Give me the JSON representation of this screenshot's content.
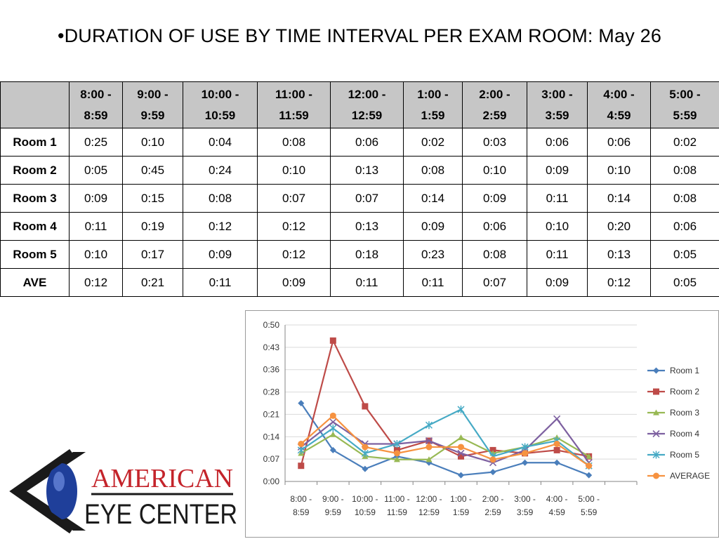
{
  "slide": {
    "title": "•DURATION OF USE BY TIME INTERVAL PER EXAM ROOM: May 26"
  },
  "table": {
    "columns": [
      "8:00 - 8:59",
      "9:00 - 9:59",
      "10:00 - 10:59",
      "11:00 - 11:59",
      "12:00 - 12:59",
      "1:00 - 1:59",
      "2:00 - 2:59",
      "3:00 - 3:59",
      "4:00 - 4:59",
      "5:00 - 5:59"
    ],
    "rows": [
      {
        "label": "Room 1",
        "cells": [
          "0:25",
          "0:10",
          "0:04",
          "0:08",
          "0:06",
          "0:02",
          "0:03",
          "0:06",
          "0:06",
          "0:02"
        ]
      },
      {
        "label": "Room 2",
        "cells": [
          "0:05",
          "0:45",
          "0:24",
          "0:10",
          "0:13",
          "0:08",
          "0:10",
          "0:09",
          "0:10",
          "0:08"
        ]
      },
      {
        "label": "Room 3",
        "cells": [
          "0:09",
          "0:15",
          "0:08",
          "0:07",
          "0:07",
          "0:14",
          "0:09",
          "0:11",
          "0:14",
          "0:08"
        ]
      },
      {
        "label": "Room 4",
        "cells": [
          "0:11",
          "0:19",
          "0:12",
          "0:12",
          "0:13",
          "0:09",
          "0:06",
          "0:10",
          "0:20",
          "0:06"
        ]
      },
      {
        "label": "Room 5",
        "cells": [
          "0:10",
          "0:17",
          "0:09",
          "0:12",
          "0:18",
          "0:23",
          "0:08",
          "0:11",
          "0:13",
          "0:05"
        ]
      },
      {
        "label": "AVE",
        "cells": [
          "0:12",
          "0:21",
          "0:11",
          "0:09",
          "0:11",
          "0:11",
          "0:07",
          "0:09",
          "0:12",
          "0:05"
        ]
      }
    ]
  },
  "chart_data": {
    "type": "line",
    "categories": [
      [
        "8:00 -",
        "8:59"
      ],
      [
        "9:00 -",
        "9:59"
      ],
      [
        "10:00 -",
        "10:59"
      ],
      [
        "11:00 -",
        "11:59"
      ],
      [
        "12:00 -",
        "12:59"
      ],
      [
        "1:00 -",
        "1:59"
      ],
      [
        "2:00 -",
        "2:59"
      ],
      [
        "3:00 -",
        "3:59"
      ],
      [
        "4:00 -",
        "4:59"
      ],
      [
        "5:00 -",
        "5:59"
      ]
    ],
    "y_ticks": [
      "0:00",
      "0:07",
      "0:14",
      "0:21",
      "0:28",
      "0:36",
      "0:43",
      "0:50"
    ],
    "ylim_minutes": [
      0,
      50
    ],
    "grid": "horizontal",
    "legend_position": "right",
    "series": [
      {
        "name": "Room 1",
        "color": "#4a7ebb",
        "marker": "diamond",
        "values": [
          25,
          10,
          4,
          8,
          6,
          2,
          3,
          6,
          6,
          2
        ]
      },
      {
        "name": "Room 2",
        "color": "#be4b48",
        "marker": "square",
        "values": [
          5,
          45,
          24,
          10,
          13,
          8,
          10,
          9,
          10,
          8
        ]
      },
      {
        "name": "Room 3",
        "color": "#98b954",
        "marker": "triangle",
        "values": [
          9,
          15,
          8,
          7,
          7,
          14,
          9,
          11,
          14,
          8
        ]
      },
      {
        "name": "Room 4",
        "color": "#7d60a0",
        "marker": "x",
        "values": [
          11,
          19,
          12,
          12,
          13,
          9,
          6,
          10,
          20,
          6
        ]
      },
      {
        "name": "Room 5",
        "color": "#46aac5",
        "marker": "star",
        "values": [
          10,
          17,
          9,
          12,
          18,
          23,
          8,
          11,
          13,
          5
        ]
      },
      {
        "name": "AVERAGE",
        "color": "#f69240",
        "marker": "circle",
        "values": [
          12,
          21,
          11,
          9,
          11,
          11,
          7,
          9,
          12,
          5
        ]
      }
    ]
  },
  "logo": {
    "line1": "AMERICAN",
    "line2": "EYE CENTER",
    "colors": {
      "red": "#c4242b",
      "black": "#1a1a1a",
      "blue": "#1f3f9a"
    }
  }
}
